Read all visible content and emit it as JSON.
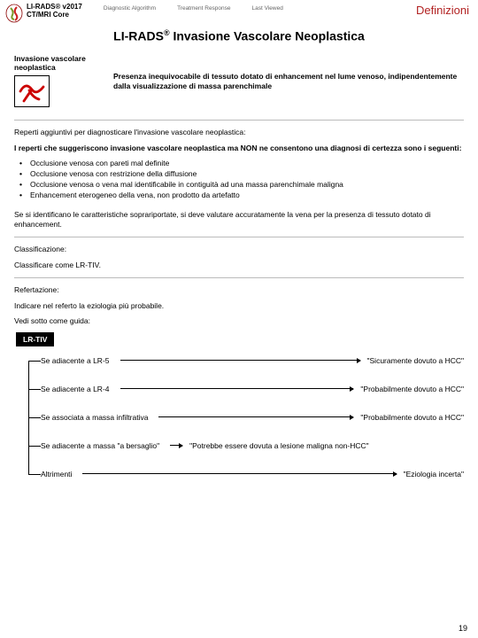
{
  "header": {
    "line1": "LI-RADS® v2017",
    "line2": "CT/MRI Core",
    "nav": [
      "Diagnostic Algorithm",
      "Treatment Response",
      "Last Viewed"
    ],
    "right": "Definizioni"
  },
  "title_pre": "LI-RADS",
  "title_sup": "®",
  "title_post": " Invasione Vascolare Neoplastica",
  "def": {
    "left_title": "Invasione vascolare neoplastica",
    "right": "Presenza inequivocabile di tessuto dotato di enhancement nel lume venoso, indipendentemente dalla visualizzazione di massa parenchimale"
  },
  "s1": {
    "head": "Reperti aggiuntivi per diagnosticare l'invasione vascolare neoplastica:",
    "sub": "I reperti che suggeriscono invasione vascolare neoplastica ma NON ne consentono una diagnosi di certezza sono i seguenti:",
    "bul": [
      "Occlusione venosa con pareti mal definite",
      "Occlusione venosa con restrizione della diffusione",
      "Occlusione venosa o vena mal identificabile in contiguità ad una massa parenchimale maligna",
      "Enhancement eterogeneo della vena, non prodotto da artefatto"
    ],
    "note": "Se si identificano le caratteristiche soprariportate, si deve valutare accuratamente la vena per la presenza di tessuto dotato di enhancement."
  },
  "s2": {
    "head": "Classificazione:",
    "body": "Classificare come LR-TIV."
  },
  "s3": {
    "head": "Refertazione:",
    "body1": "Indicare nel referto la eziologia più probabile.",
    "body2": "Vedi sotto come guida:"
  },
  "tree": {
    "root": "LR-TIV",
    "rows": [
      {
        "label": "Se adiacente a LR-5",
        "result": "\"Sicuramente dovuto a HCC\""
      },
      {
        "label": "Se adiacente a LR-4",
        "result": "\"Probabilmente dovuto a HCC\""
      },
      {
        "label": "Se associata a massa infiltrativa",
        "result": "\"Probabilmente dovuto a HCC\""
      },
      {
        "label": "Se adiacente a massa  \"a bersaglio\"",
        "result": "\"Potrebbe essere dovuta a lesione maligna non-HCC\"",
        "short": true
      },
      {
        "label": "Altrimenti",
        "result": "\"Eziologia incerta\""
      }
    ]
  },
  "page": "19"
}
